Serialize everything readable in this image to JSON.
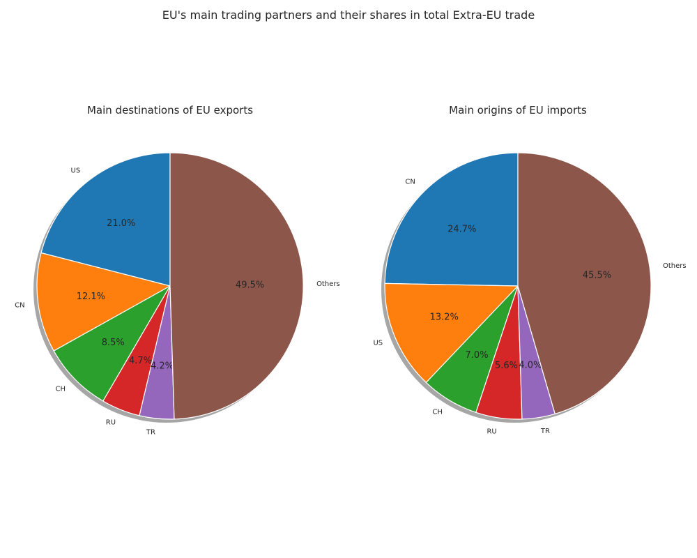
{
  "figure": {
    "title": "EU's main trading partners and their shares in total Extra-EU trade"
  },
  "chart_data": [
    {
      "type": "pie",
      "title": "Main destinations of EU exports",
      "labels": [
        "US",
        "CN",
        "CH",
        "RU",
        "TR",
        "Others"
      ],
      "values": [
        21.0,
        12.1,
        8.5,
        4.7,
        4.2,
        49.5
      ],
      "value_labels": [
        "21.0%",
        "12.1%",
        "8.5%",
        "4.7%",
        "4.2%",
        "49.5%"
      ],
      "colors": [
        "#1f77b4",
        "#ff7f0e",
        "#2ca02c",
        "#d62728",
        "#9467bd",
        "#8c564b"
      ],
      "start_angle_deg": 90,
      "shadow": true
    },
    {
      "type": "pie",
      "title": "Main origins of EU imports",
      "labels": [
        "CN",
        "US",
        "CH",
        "RU",
        "TR",
        "Others"
      ],
      "values": [
        24.7,
        13.2,
        7.0,
        5.6,
        4.0,
        45.5
      ],
      "value_labels": [
        "24.7%",
        "13.2%",
        "7.0%",
        "5.6%",
        "4.0%",
        "45.5%"
      ],
      "colors": [
        "#1f77b4",
        "#ff7f0e",
        "#2ca02c",
        "#d62728",
        "#9467bd",
        "#8c564b"
      ],
      "start_angle_deg": 90,
      "shadow": true
    }
  ]
}
